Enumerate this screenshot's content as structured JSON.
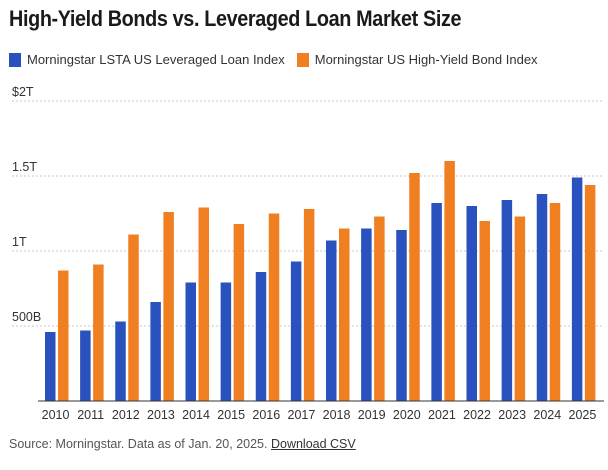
{
  "title": "High-Yield Bonds vs. Leveraged Loan Market Size",
  "source_text": "Source: Morningstar. Data as of Jan. 20, 2025.",
  "download_label": "Download CSV",
  "colors": {
    "loan": "#2a52be",
    "bond": "#f07f22",
    "grid": "#c9c9c9",
    "axis": "#333333"
  },
  "chart_data": {
    "type": "bar",
    "categories": [
      "2010",
      "2011",
      "2012",
      "2013",
      "2014",
      "2015",
      "2016",
      "2017",
      "2018",
      "2019",
      "2020",
      "2021",
      "2022",
      "2023",
      "2024",
      "2025"
    ],
    "series": [
      {
        "name": "Morningstar LSTA US Leveraged Loan Index",
        "values": [
          0.46,
          0.47,
          0.53,
          0.66,
          0.79,
          0.79,
          0.86,
          0.93,
          1.07,
          1.15,
          1.14,
          1.32,
          1.3,
          1.34,
          1.38,
          1.49
        ]
      },
      {
        "name": "Morningstar US High-Yield Bond Index",
        "values": [
          0.87,
          0.91,
          1.11,
          1.26,
          1.29,
          1.18,
          1.25,
          1.28,
          1.15,
          1.23,
          1.52,
          1.6,
          1.2,
          1.23,
          1.32,
          1.44
        ]
      }
    ],
    "ylim": [
      0,
      2
    ],
    "yticks": [
      {
        "value": 0.5,
        "label": "500B"
      },
      {
        "value": 1,
        "label": "1T"
      },
      {
        "value": 1.5,
        "label": "1.5T"
      },
      {
        "value": 2,
        "label": "$2T"
      }
    ],
    "grid": true,
    "legend_position": "top-left"
  }
}
